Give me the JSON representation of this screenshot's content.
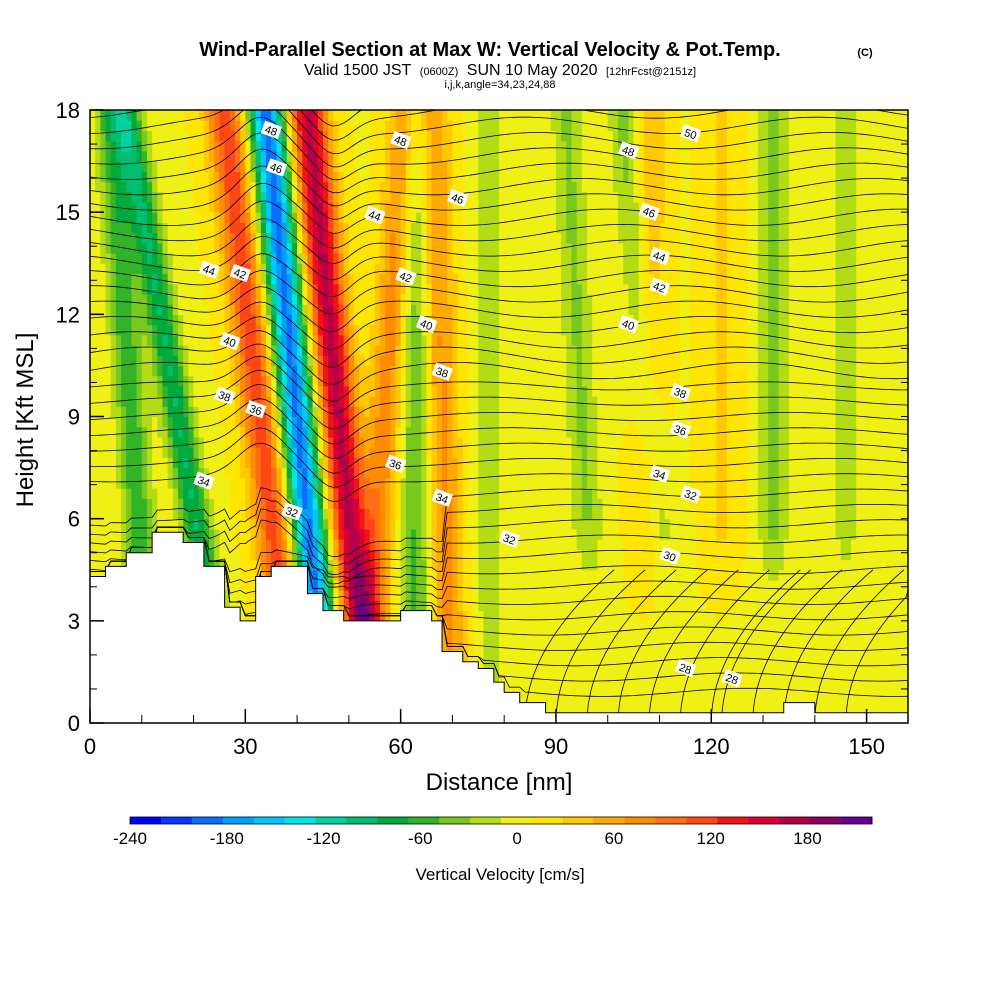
{
  "header": {
    "title_main": "Wind-Parallel Section at Max W: Vertical Velocity & Pot.Temp.",
    "title_mark": "(C)",
    "subtitle_a": "Valid 1500 JST",
    "subtitle_b": "(0600Z)",
    "subtitle_c": "SUN 10 May 2020",
    "subtitle_d": "[12hrFcst@2151z]",
    "subtitle_line2": "i,j,k,angle=34,23,24,88"
  },
  "chart_data": {
    "type": "heatmap",
    "title": "Wind-Parallel Section at Max W: Vertical Velocity & Pot.Temp.",
    "xlabel": "Distance [nm]",
    "ylabel": "Height [Kft MSL]",
    "xlim": [
      0,
      158
    ],
    "ylim": [
      0,
      18
    ],
    "x_ticks": [
      "0",
      "30",
      "60",
      "90",
      "120",
      "150"
    ],
    "y_ticks": [
      "0",
      "3",
      "6",
      "9",
      "12",
      "15",
      "18"
    ],
    "colorbar": {
      "label": "Vertical Velocity [cm/s]",
      "range": [
        -240,
        220
      ],
      "tick_labels": [
        "-240",
        "-180",
        "-120",
        "-60",
        "0",
        "60",
        "120",
        "180"
      ],
      "colors": [
        "#0000ff",
        "#0a37ff",
        "#0a6eff",
        "#00a0ff",
        "#00c8ff",
        "#00e6e6",
        "#00d2a0",
        "#00be6e",
        "#00aa3c",
        "#32b428",
        "#78c81e",
        "#b4dc14",
        "#f0f014",
        "#ffe600",
        "#ffc800",
        "#ffaa00",
        "#ff8c00",
        "#ff6e14",
        "#ff4614",
        "#f01414",
        "#dc0032",
        "#b4004b",
        "#8c0064",
        "#640096"
      ]
    },
    "velocity_features": [
      {
        "kind": "downdraft",
        "x": 8,
        "peak": -70,
        "xskew": -4
      },
      {
        "kind": "downdraft",
        "x": 17,
        "peak": -95,
        "xskew": -10
      },
      {
        "kind": "updraft",
        "x": 33,
        "peak": 110,
        "xskew": -7
      },
      {
        "kind": "downdraft",
        "x": 40,
        "peak": -200,
        "xskew": -6
      },
      {
        "kind": "updraft",
        "x": 48,
        "peak": 160,
        "xskew": -6
      },
      {
        "kind": "updraft",
        "x": 57,
        "peak": 70,
        "xskew": 4
      },
      {
        "kind": "downdraft",
        "x": 63,
        "peak": -60,
        "xskew": 0
      },
      {
        "kind": "updraft",
        "x": 68,
        "peak": 65,
        "xskew": -2
      },
      {
        "kind": "downdraft",
        "x": 77,
        "peak": -25,
        "xskew": 0
      },
      {
        "kind": "downdraft",
        "x": 95,
        "peak": -40,
        "xskew": -3
      },
      {
        "kind": "downdraft",
        "x": 108,
        "peak": -45,
        "xskew": -5
      },
      {
        "kind": "updraft",
        "x": 108,
        "peak": 40,
        "xskew": 0
      },
      {
        "kind": "downdraft",
        "x": 132,
        "peak": -45,
        "xskew": 0
      },
      {
        "kind": "downdraft",
        "x": 146,
        "peak": -30,
        "xskew": 0
      },
      {
        "kind": "updraft",
        "x": 122,
        "peak": 25,
        "xskew": 0
      }
    ],
    "terrain_kft": [
      [
        0,
        4.3
      ],
      [
        3,
        4.6
      ],
      [
        7,
        5.0
      ],
      [
        12,
        5.6
      ],
      [
        18,
        5.3
      ],
      [
        22,
        4.6
      ],
      [
        26,
        3.4
      ],
      [
        29,
        3.0
      ],
      [
        32,
        4.3
      ],
      [
        35,
        4.6
      ],
      [
        40,
        4.6
      ],
      [
        42,
        3.8
      ],
      [
        45,
        3.3
      ],
      [
        49,
        3.0
      ],
      [
        58,
        3.0
      ],
      [
        60,
        3.3
      ],
      [
        64,
        3.3
      ],
      [
        66,
        3.0
      ],
      [
        68,
        2.1
      ],
      [
        72,
        1.8
      ],
      [
        75,
        1.6
      ],
      [
        78,
        1.2
      ],
      [
        80,
        0.9
      ],
      [
        83,
        0.6
      ],
      [
        88,
        0.3
      ],
      [
        100,
        0.3
      ],
      [
        133,
        0.3
      ],
      [
        134,
        0.6
      ],
      [
        139,
        0.6
      ],
      [
        140,
        0.3
      ],
      [
        158,
        0.3
      ]
    ],
    "theta_contour_labels": [
      {
        "text": "48",
        "x": 35,
        "y": 17.4
      },
      {
        "text": "46",
        "x": 36,
        "y": 16.3
      },
      {
        "text": "44",
        "x": 23,
        "y": 13.3
      },
      {
        "text": "42",
        "x": 29,
        "y": 13.2
      },
      {
        "text": "40",
        "x": 27,
        "y": 11.2
      },
      {
        "text": "38",
        "x": 26,
        "y": 9.6
      },
      {
        "text": "36",
        "x": 32,
        "y": 9.2
      },
      {
        "text": "34",
        "x": 22,
        "y": 7.1
      },
      {
        "text": "32",
        "x": 39,
        "y": 6.2
      },
      {
        "text": "48",
        "x": 60,
        "y": 17.1
      },
      {
        "text": "44",
        "x": 55,
        "y": 14.9
      },
      {
        "text": "46",
        "x": 71,
        "y": 15.4
      },
      {
        "text": "42",
        "x": 61,
        "y": 13.1
      },
      {
        "text": "40",
        "x": 65,
        "y": 11.7
      },
      {
        "text": "38",
        "x": 68,
        "y": 10.3
      },
      {
        "text": "36",
        "x": 59,
        "y": 7.6
      },
      {
        "text": "34",
        "x": 68,
        "y": 6.6
      },
      {
        "text": "32",
        "x": 81,
        "y": 5.4
      },
      {
        "text": "48",
        "x": 104,
        "y": 16.8
      },
      {
        "text": "50",
        "x": 116,
        "y": 17.3
      },
      {
        "text": "46",
        "x": 108,
        "y": 15.0
      },
      {
        "text": "44",
        "x": 110,
        "y": 13.7
      },
      {
        "text": "42",
        "x": 110,
        "y": 12.8
      },
      {
        "text": "40",
        "x": 104,
        "y": 11.7
      },
      {
        "text": "38",
        "x": 114,
        "y": 9.7
      },
      {
        "text": "36",
        "x": 114,
        "y": 8.6
      },
      {
        "text": "34",
        "x": 110,
        "y": 7.3
      },
      {
        "text": "32",
        "x": 116,
        "y": 6.7
      },
      {
        "text": "30",
        "x": 112,
        "y": 4.9
      },
      {
        "text": "28",
        "x": 115,
        "y": 1.6
      },
      {
        "text": "28",
        "x": 124,
        "y": 1.3
      }
    ]
  }
}
